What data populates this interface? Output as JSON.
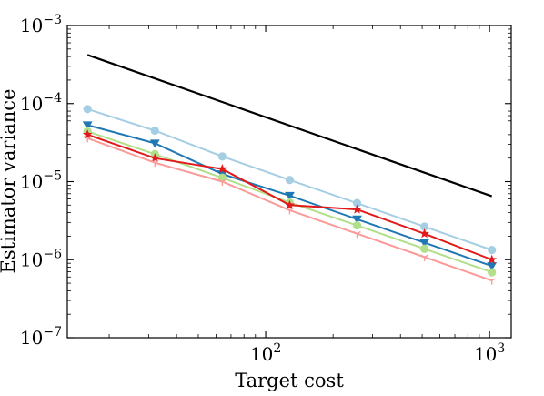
{
  "chart_data": {
    "type": "line",
    "xscale": "log",
    "yscale": "log",
    "xlabel": "Target cost",
    "ylabel": "Estimator variance",
    "xlim": [
      13,
      1250
    ],
    "ylim": [
      1e-07,
      0.001
    ],
    "grid": false,
    "x_ticks": [
      {
        "value": 100,
        "base": "10",
        "exp": "2"
      },
      {
        "value": 1000,
        "base": "10",
        "exp": "3"
      }
    ],
    "y_ticks": [
      {
        "value": 1e-07,
        "base": "10",
        "exp": "−7"
      },
      {
        "value": 1e-06,
        "base": "10",
        "exp": "−6"
      },
      {
        "value": 1e-05,
        "base": "10",
        "exp": "−5"
      },
      {
        "value": 0.0001,
        "base": "10",
        "exp": "−4"
      },
      {
        "value": 0.001,
        "base": "10",
        "exp": "−3"
      }
    ],
    "x": [
      16,
      32,
      64,
      128,
      256,
      512,
      1024
    ],
    "series": [
      {
        "color": "#000000",
        "marker": "none",
        "x": [
          16,
          1024
        ],
        "values": [
          0.00042,
          6.5e-06
        ]
      },
      {
        "color": "#a6cee3",
        "marker": "circle",
        "values": [
          8.5e-05,
          4.5e-05,
          2.1e-05,
          1.05e-05,
          5.3e-06,
          2.65e-06,
          1.33e-06
        ]
      },
      {
        "color": "#1f78b4",
        "marker": "triangle-down",
        "values": [
          5.3e-05,
          3.1e-05,
          1.25e-05,
          6.6e-06,
          3.3e-06,
          1.65e-06,
          8.3e-07
        ]
      },
      {
        "color": "#b2df8a",
        "marker": "circle",
        "values": [
          4.4e-05,
          2.25e-05,
          1.12e-05,
          5.4e-06,
          2.75e-06,
          1.38e-06,
          6.9e-07
        ]
      },
      {
        "color": "#e31a1c",
        "marker": "star",
        "values": [
          4e-05,
          2e-05,
          1.45e-05,
          5e-06,
          4.4e-06,
          2.15e-06,
          1e-06
        ]
      },
      {
        "color": "#fb9a99",
        "marker": "tri-down",
        "values": [
          3.6e-05,
          1.75e-05,
          1e-05,
          4.3e-06,
          2.15e-06,
          1.08e-06,
          5.4e-07
        ]
      }
    ]
  }
}
